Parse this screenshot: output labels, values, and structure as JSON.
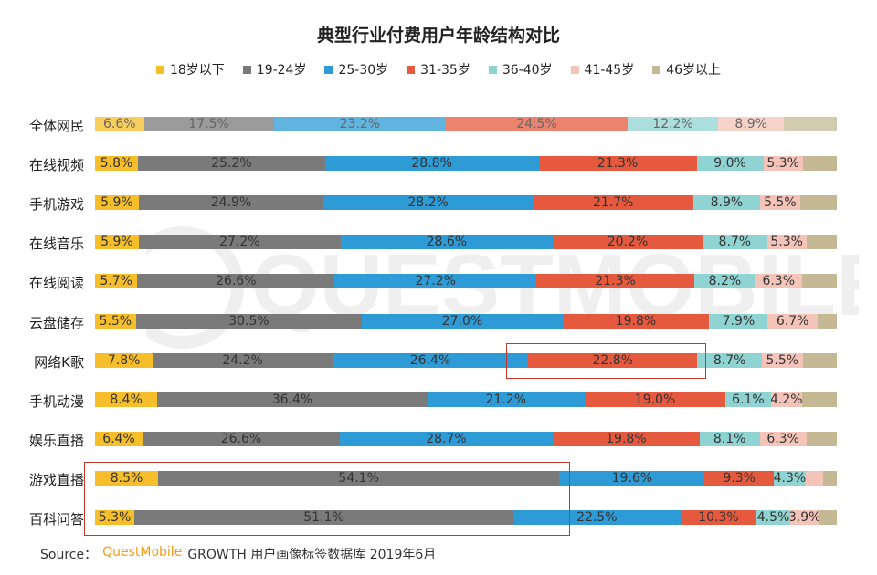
{
  "title": "典型行业付费用户年龄结构对比",
  "source": {
    "prefix": "Source：",
    "brand": "QuestMobile",
    "rest": "GROWTH 用户画像标签数据库 2019年6月"
  },
  "watermark": "QUESTMOBILE",
  "colors": {
    "18岁以下": "#f6be2a",
    "19-24岁": "#7a7a7a",
    "25-30岁": "#2e9bd6",
    "31-35岁": "#e55a3f",
    "36-40岁": "#8fd4d2",
    "41-45岁": "#f5c4b8",
    "46岁以上": "#c4b994"
  },
  "chart_data": {
    "type": "bar",
    "orientation": "horizontal",
    "stacked": true,
    "title": "典型行业付费用户年龄结构对比",
    "legend_position": "top",
    "categories": [
      "全体网民",
      "在线视频",
      "手机游戏",
      "在线音乐",
      "在线阅读",
      "云盘储存",
      "网络K歌",
      "手机动漫",
      "娱乐直播",
      "游戏直播",
      "百科问答"
    ],
    "series": [
      {
        "name": "18岁以下",
        "values": [
          6.6,
          5.8,
          5.9,
          5.9,
          5.7,
          5.5,
          7.8,
          8.4,
          6.4,
          8.5,
          5.3
        ]
      },
      {
        "name": "19-24岁",
        "values": [
          17.5,
          25.2,
          24.9,
          27.2,
          26.6,
          30.5,
          24.2,
          36.4,
          26.6,
          54.1,
          51.1
        ]
      },
      {
        "name": "25-30岁",
        "values": [
          23.2,
          28.8,
          28.2,
          28.6,
          27.2,
          27.0,
          26.4,
          21.2,
          28.7,
          19.6,
          22.5
        ]
      },
      {
        "name": "31-35岁",
        "values": [
          24.5,
          21.3,
          21.7,
          20.2,
          21.3,
          19.8,
          22.8,
          19.0,
          19.8,
          9.3,
          10.3
        ]
      },
      {
        "name": "36-40岁",
        "values": [
          12.2,
          9.0,
          8.9,
          8.7,
          8.2,
          7.9,
          8.7,
          6.1,
          8.1,
          4.3,
          4.5
        ]
      },
      {
        "name": "41-45岁",
        "values": [
          8.9,
          5.3,
          5.5,
          5.3,
          6.3,
          6.7,
          5.5,
          4.2,
          6.3,
          2.3,
          3.9
        ]
      },
      {
        "name": "46岁以上",
        "values": [
          7.1,
          4.6,
          4.9,
          4.1,
          4.7,
          2.6,
          4.6,
          4.7,
          4.1,
          1.9,
          2.4
        ]
      }
    ],
    "labels": [
      [
        "6.6%",
        "17.5%",
        "23.2%",
        "24.5%",
        "12.2%",
        "8.9%",
        ""
      ],
      [
        "5.8%",
        "25.2%",
        "28.8%",
        "21.3%",
        "9.0%",
        "5.3%",
        ""
      ],
      [
        "5.9%",
        "24.9%",
        "28.2%",
        "21.7%",
        "8.9%",
        "5.5%",
        ""
      ],
      [
        "5.9%",
        "27.2%",
        "28.6%",
        "20.2%",
        "8.7%",
        "5.3%",
        ""
      ],
      [
        "5.7%",
        "26.6%",
        "27.2%",
        "21.3%",
        "8.2%",
        "6.3%",
        ""
      ],
      [
        "5.5%",
        "30.5%",
        "27.0%",
        "19.8%",
        "7.9%",
        "6.7%",
        ""
      ],
      [
        "7.8%",
        "24.2%",
        "26.4%",
        "22.8%",
        "8.7%",
        "5.5%",
        ""
      ],
      [
        "8.4%",
        "36.4%",
        "21.2%",
        "19.0%",
        "6.1%",
        "4.2%",
        ""
      ],
      [
        "6.4%",
        "26.6%",
        "28.7%",
        "19.8%",
        "8.1%",
        "6.3%",
        ""
      ],
      [
        "8.5%",
        "54.1%",
        "19.6%",
        "9.3%",
        "4.3%",
        "",
        ""
      ],
      [
        "5.3%",
        "51.1%",
        "22.5%",
        "10.3%",
        "4.5%",
        "3.9%",
        ""
      ]
    ],
    "highlights": [
      {
        "category": "网络K歌",
        "series": "31-35岁"
      },
      {
        "categories": [
          "游戏直播",
          "百科问答"
        ],
        "series": [
          "18岁以下",
          "19-24岁"
        ]
      }
    ],
    "xlim": [
      0,
      100
    ]
  }
}
